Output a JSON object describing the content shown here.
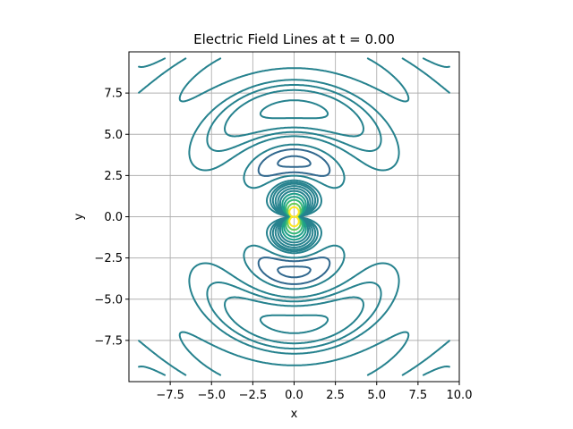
{
  "chart_data": {
    "type": "contour",
    "title": "Electric Field Lines at t = 0.00",
    "xlabel": "x",
    "ylabel": "y",
    "xlim": [
      -10,
      10
    ],
    "ylim": [
      -10,
      10
    ],
    "grid": true,
    "aspect": "equal",
    "x_ticks": [
      -7.5,
      -5.0,
      -2.5,
      0.0,
      2.5,
      5.0,
      7.5,
      10.0
    ],
    "x_tick_labels": [
      "−7.5",
      "−5.0",
      "−2.5",
      "0.0",
      "2.5",
      "5.0",
      "7.5",
      "10.0"
    ],
    "y_ticks": [
      7.5,
      5.0,
      2.5,
      0.0,
      -2.5,
      -5.0,
      -7.5
    ],
    "y_tick_labels": [
      "7.5",
      "5.0",
      "2.5",
      "0.0",
      "−2.5",
      "−5.0",
      "−7.5"
    ],
    "colormap": "viridis",
    "field": {
      "description_of_source": "oscillating dipole at origin",
      "t": 0.0
    },
    "levels": [
      -3,
      -2.5,
      -2,
      -1.5,
      -1,
      -0.6,
      -0.3,
      0.3,
      0.6,
      1,
      1.5,
      2,
      2.5,
      3,
      4,
      6,
      9
    ],
    "colors": {
      "low": "#31688e",
      "mid": "#1f9e89",
      "high": "#35b779",
      "peak": "#fde725"
    }
  }
}
